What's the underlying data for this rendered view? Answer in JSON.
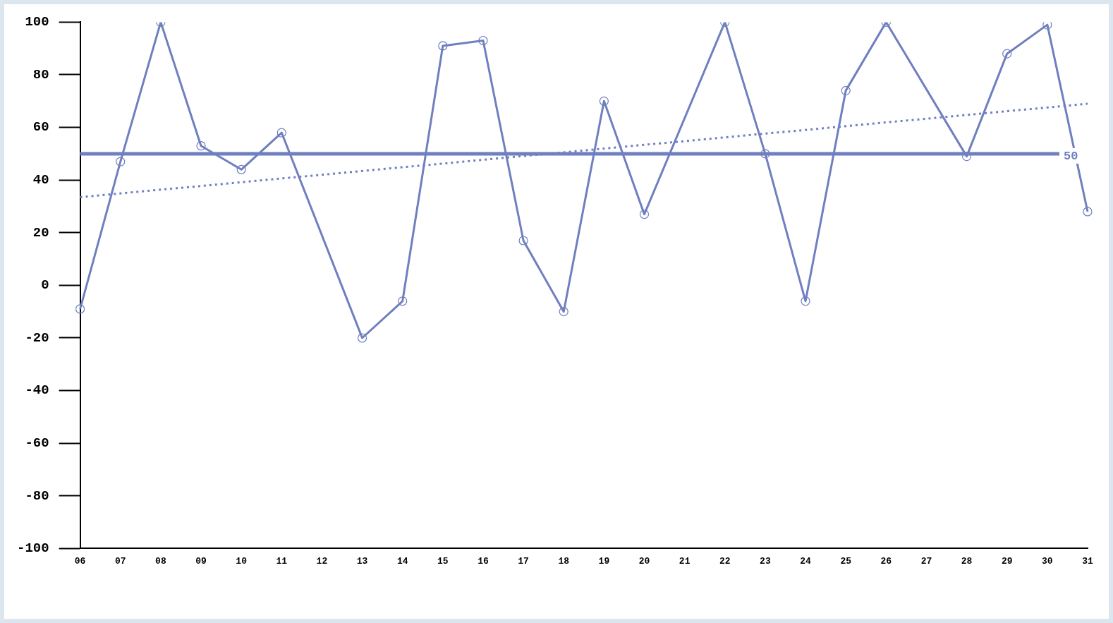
{
  "chart_data": {
    "type": "line",
    "categories": [
      "06",
      "07",
      "08",
      "09",
      "10",
      "11",
      "12",
      "13",
      "14",
      "15",
      "16",
      "17",
      "18",
      "19",
      "20",
      "21",
      "22",
      "23",
      "24",
      "25",
      "26",
      "27",
      "28",
      "29",
      "30",
      "31"
    ],
    "series": [
      {
        "color": "#6f7fbf",
        "marker": "circle",
        "line_style": "solid",
        "values": [
          -9,
          47,
          100,
          53,
          44,
          58,
          null,
          -20,
          -6,
          91,
          93,
          17,
          -10,
          70,
          27,
          null,
          100,
          50,
          -6,
          74,
          100,
          null,
          49,
          88,
          99,
          28
        ]
      },
      {
        "color": "#6f7fbf",
        "marker": "none",
        "line_style": "dotted",
        "values": [
          33.5,
          null,
          null,
          null,
          null,
          null,
          null,
          null,
          null,
          null,
          null,
          null,
          null,
          null,
          null,
          null,
          null,
          null,
          null,
          null,
          null,
          null,
          null,
          null,
          null,
          69
        ]
      }
    ],
    "ylim": [
      -100,
      100
    ],
    "yticks": [
      -100,
      -80,
      -60,
      -40,
      -20,
      0,
      20,
      40,
      60,
      80,
      100
    ],
    "grid": false,
    "legend": false,
    "ref_lines": [
      {
        "axis": "y",
        "value": 50,
        "label": "50",
        "color": "#6f7fbf"
      }
    ]
  }
}
